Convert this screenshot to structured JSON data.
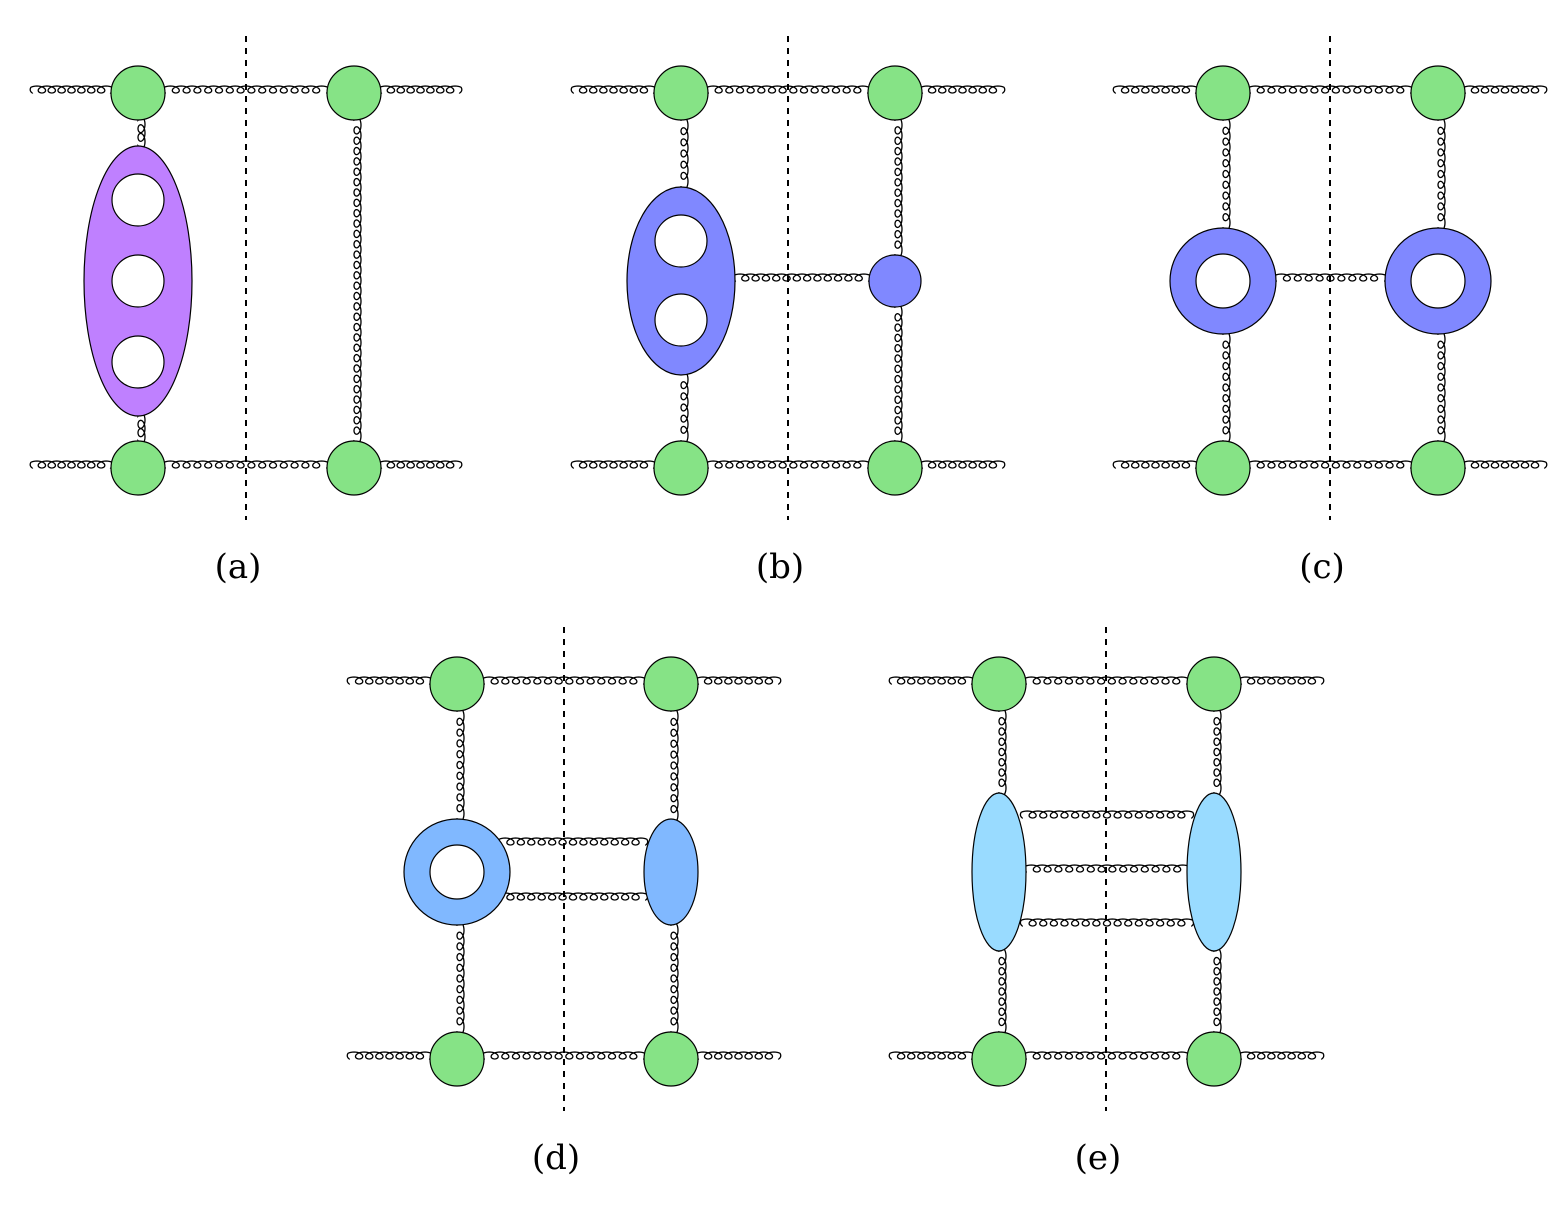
{
  "colors": {
    "vertex": "#86e386",
    "purple": "#bf80ff",
    "blue": "#8088ff",
    "mid_blue": "#80b8ff",
    "light_blue": "#99dbff",
    "line": "#000000"
  },
  "panels": [
    {
      "id": "a",
      "caption": "(a)",
      "topology": "single rung, three-loop blob"
    },
    {
      "id": "b",
      "caption": "(b)",
      "topology": "two-loop blob connected by one gluon to vertex"
    },
    {
      "id": "c",
      "caption": "(c)",
      "topology": "two one-loop rings connected by one gluon"
    },
    {
      "id": "d",
      "caption": "(d)",
      "topology": "one-loop ring connected by two gluons to blob"
    },
    {
      "id": "e",
      "caption": "(e)",
      "topology": "two blobs connected by three gluons"
    }
  ]
}
